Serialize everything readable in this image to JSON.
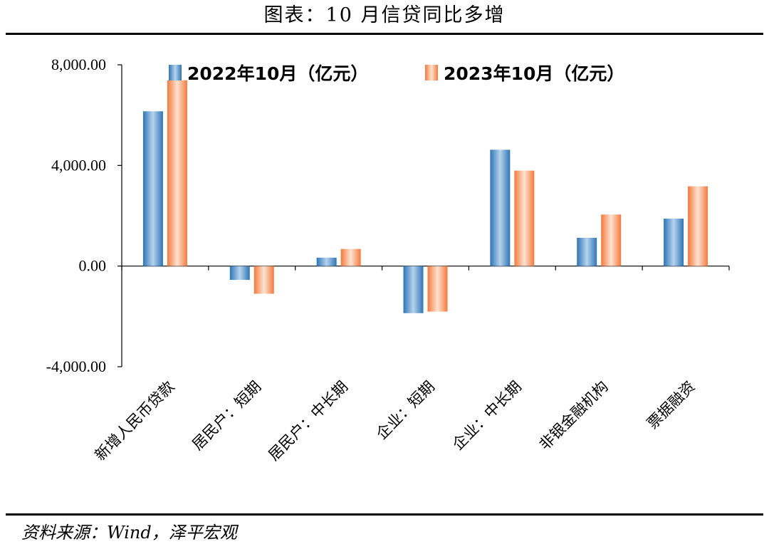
{
  "header": {
    "title": "图表：10 月信贷同比多增"
  },
  "footer": {
    "source": "资料来源：Wind，泽平宏观"
  },
  "colors": {
    "series_1": "#2e75b6",
    "series_2": "#f4793b"
  },
  "chart_data": {
    "type": "bar",
    "categories": [
      "新增人民币贷款",
      "居民户：短期",
      "居民户：中长期",
      "企业：短期",
      "企业：中长期",
      "非银金融机构",
      "票据融资"
    ],
    "series": [
      {
        "name": "2022年10月（亿元）",
        "values": [
          6152,
          -549,
          335,
          -1871,
          4624,
          1123,
          1885
        ]
      },
      {
        "name": "2023年10月（亿元）",
        "values": [
          7384,
          -1101,
          680,
          -1809,
          3794,
          2049,
          3170
        ]
      }
    ],
    "ylim": [
      -4000,
      8000
    ],
    "yticks": [
      -4000,
      0,
      4000,
      8000
    ],
    "ytick_labels": [
      "-4,000.00",
      "0.00",
      "4,000.00",
      "8,000.00"
    ],
    "grid": false,
    "legend": "top"
  }
}
